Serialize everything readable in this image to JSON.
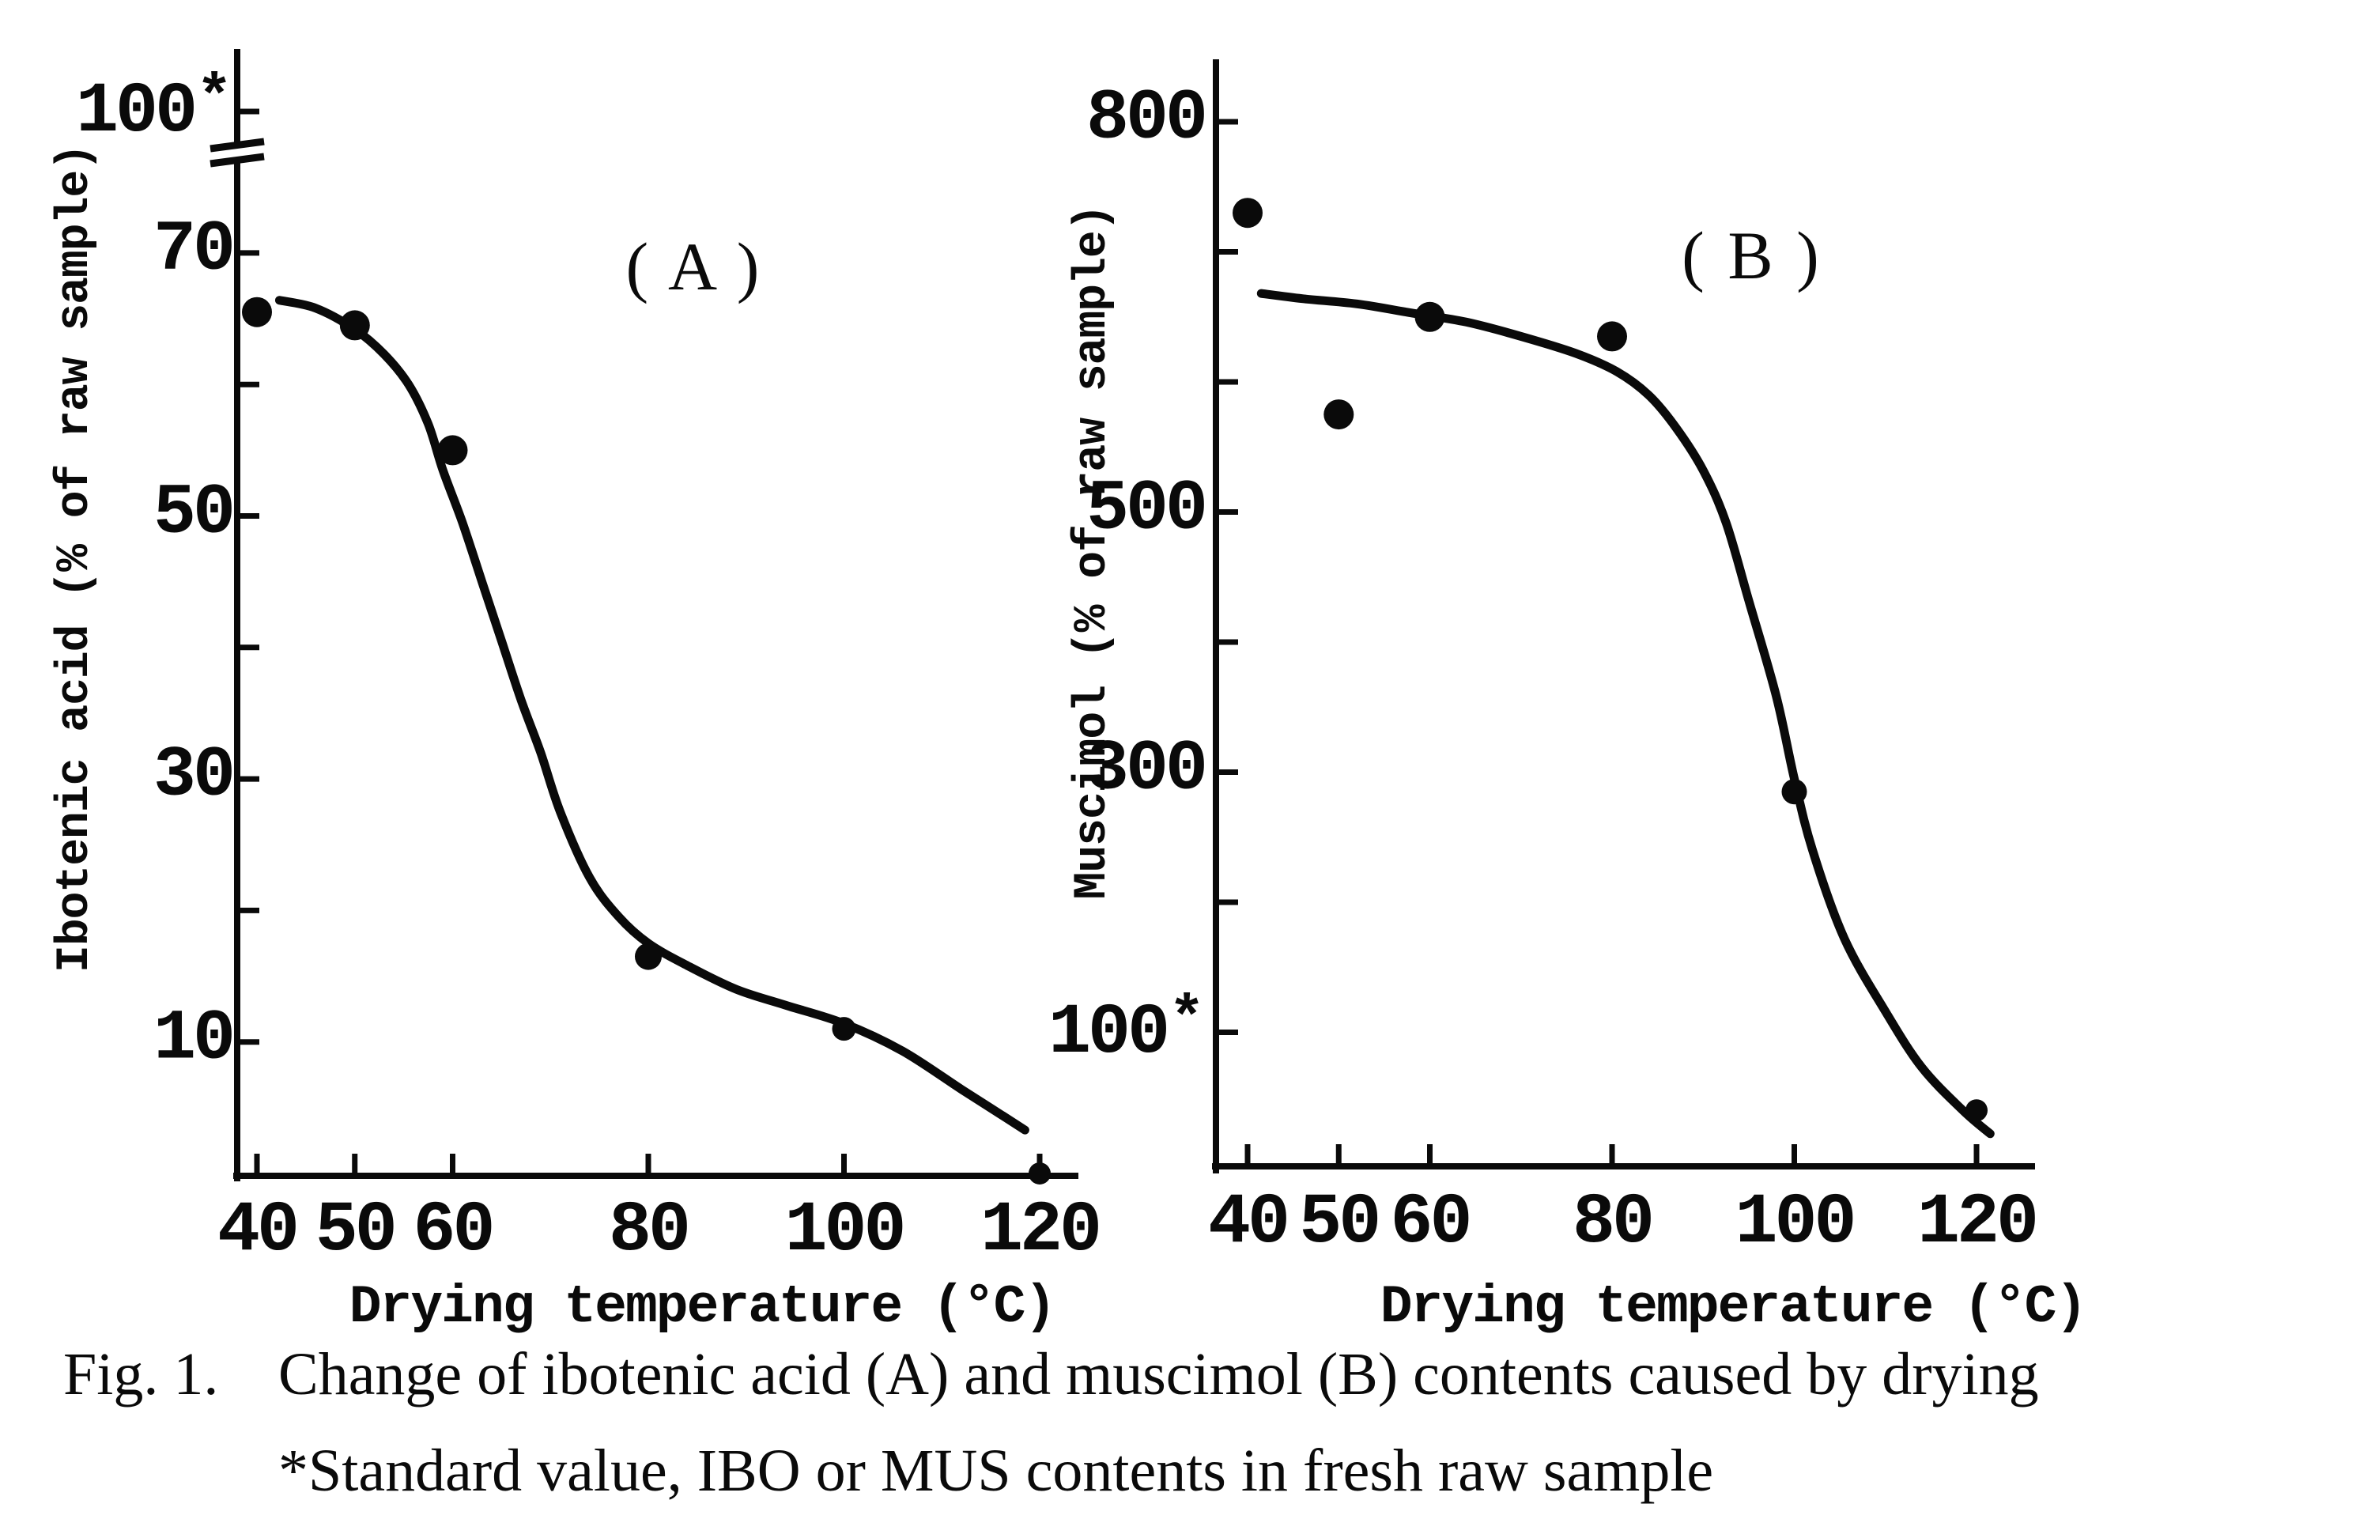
{
  "figure": {
    "caption": {
      "prefix": "Fig. 1.",
      "line1": "Change of ibotenic acid (A) and muscimol (B) contents caused by drying",
      "line2": "*Standard value, IBO or MUS contents in fresh raw sample"
    },
    "background_color": "#ffffff",
    "ink_color": "#0a0a0a"
  },
  "chart_data": [
    {
      "panel_label": "( A )",
      "type": "scatter",
      "series_name": "Ibotenic acid",
      "xlabel": "Drying temperature (°C)",
      "ylabel": "Ibotenic acid (% of raw sample)",
      "x_unit": "°C",
      "x": [
        40,
        50,
        60,
        80,
        100,
        120
      ],
      "values": [
        65.5,
        64.5,
        55,
        16.5,
        11,
        0
      ],
      "fitted_curve": [
        [
          42.3,
          66.4
        ],
        [
          46,
          65.8
        ],
        [
          50,
          64.2
        ],
        [
          53,
          62.3
        ],
        [
          55.5,
          60
        ],
        [
          57.5,
          57
        ],
        [
          59,
          53.5
        ],
        [
          61,
          49.5
        ],
        [
          63,
          45
        ],
        [
          65,
          40.5
        ],
        [
          67,
          36
        ],
        [
          69,
          32
        ],
        [
          71,
          27.5
        ],
        [
          74,
          22.5
        ],
        [
          77,
          19.5
        ],
        [
          80,
          17.5
        ],
        [
          84,
          15.8
        ],
        [
          89,
          14
        ],
        [
          94,
          12.8
        ],
        [
          100,
          11.4
        ],
        [
          106,
          9.3
        ],
        [
          112,
          6.4
        ],
        [
          116,
          4.5
        ],
        [
          118.5,
          3.3
        ]
      ],
      "xticks": [
        {
          "value": 40,
          "label": "40"
        },
        {
          "value": 50,
          "label": "50"
        },
        {
          "value": 60,
          "label": "60"
        },
        {
          "value": 80,
          "label": "80"
        },
        {
          "value": 100,
          "label": "100"
        },
        {
          "value": 120,
          "label": "120"
        }
      ],
      "yticks": [
        {
          "value": 10,
          "label": "10"
        },
        {
          "value": 20,
          "label": ""
        },
        {
          "value": 30,
          "label": "30"
        },
        {
          "value": 40,
          "label": ""
        },
        {
          "value": 50,
          "label": "50"
        },
        {
          "value": 60,
          "label": ""
        },
        {
          "value": 70,
          "label": "70"
        }
      ],
      "ytick_above_break": {
        "value": 100,
        "label": "100*"
      },
      "axis_break": true,
      "xlim": [
        40,
        120
      ],
      "ylim": [
        0,
        78
      ],
      "grid": false,
      "legend": null
    },
    {
      "panel_label": "( B )",
      "type": "scatter",
      "series_name": "Muscimol",
      "xlabel": "Drying temperature (°C)",
      "ylabel": "Muscimol (% of raw sample)",
      "x_unit": "°C",
      "x": [
        40,
        50,
        60,
        80,
        100,
        120
      ],
      "values": [
        730,
        575,
        650,
        635,
        285,
        40
      ],
      "fitted_curve": [
        [
          41.5,
          668
        ],
        [
          46,
          664
        ],
        [
          52,
          660
        ],
        [
          58,
          653
        ],
        [
          64,
          646
        ],
        [
          70,
          635
        ],
        [
          76,
          622
        ],
        [
          80.5,
          608
        ],
        [
          84,
          590
        ],
        [
          87,
          565
        ],
        [
          90,
          532
        ],
        [
          92.5,
          492
        ],
        [
          95,
          432
        ],
        [
          98,
          359
        ],
        [
          100,
          295
        ],
        [
          102,
          240
        ],
        [
          105.5,
          172
        ],
        [
          110,
          116
        ],
        [
          114,
          73
        ],
        [
          118.5,
          40
        ],
        [
          121.5,
          22
        ]
      ],
      "xticks": [
        {
          "value": 40,
          "label": "40"
        },
        {
          "value": 50,
          "label": "50"
        },
        {
          "value": 60,
          "label": "60"
        },
        {
          "value": 80,
          "label": "80"
        },
        {
          "value": 100,
          "label": "100"
        },
        {
          "value": 120,
          "label": "120"
        }
      ],
      "yticks": [
        {
          "value": 100,
          "label": "100*"
        },
        {
          "value": 200,
          "label": ""
        },
        {
          "value": 300,
          "label": "300"
        },
        {
          "value": 400,
          "label": ""
        },
        {
          "value": 500,
          "label": "500"
        },
        {
          "value": 600,
          "label": ""
        },
        {
          "value": 700,
          "label": ""
        },
        {
          "value": 800,
          "label": "800"
        }
      ],
      "ytick_above_break": null,
      "axis_break": false,
      "xlim": [
        40,
        120
      ],
      "ylim": [
        0,
        830
      ],
      "grid": false,
      "legend": null
    }
  ]
}
